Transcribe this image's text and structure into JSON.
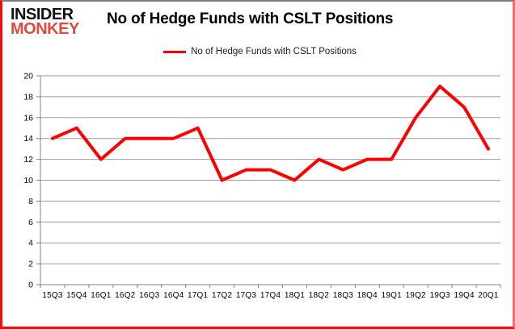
{
  "logo": {
    "line1": "INSIDER",
    "line2": "MONKEY"
  },
  "title": "No of Hedge Funds with CSLT Positions",
  "legend": {
    "label": "No of Hedge Funds with CSLT Positions"
  },
  "colors": {
    "series_line": "#ff0000",
    "gridline": "#9b9b9b",
    "axis": "#808080",
    "frame_border": "#fb0a0a",
    "frame_border_top": "#7a7a7a",
    "logo_primary": "#121212",
    "logo_accent": "#dd4b3e"
  },
  "chart_data": {
    "type": "line",
    "title": "No of Hedge Funds with CSLT Positions",
    "categories": [
      "15Q3",
      "15Q4",
      "16Q1",
      "16Q2",
      "16Q3",
      "16Q4",
      "17Q1",
      "17Q2",
      "17Q3",
      "17Q4",
      "18Q1",
      "18Q2",
      "18Q3",
      "18Q4",
      "19Q1",
      "19Q2",
      "19Q3",
      "19Q4",
      "20Q1"
    ],
    "series": [
      {
        "name": "No of Hedge Funds with CSLT Positions",
        "color": "#ff0000",
        "values": [
          14,
          15,
          12,
          14,
          14,
          14,
          15,
          10,
          11,
          11,
          10,
          12,
          11,
          12,
          12,
          16,
          19,
          17,
          13
        ]
      }
    ],
    "xlabel": "",
    "ylabel": "",
    "ylim": [
      0,
      20
    ],
    "ytick_step": 2,
    "grid": true,
    "legend_position": "top-center"
  }
}
